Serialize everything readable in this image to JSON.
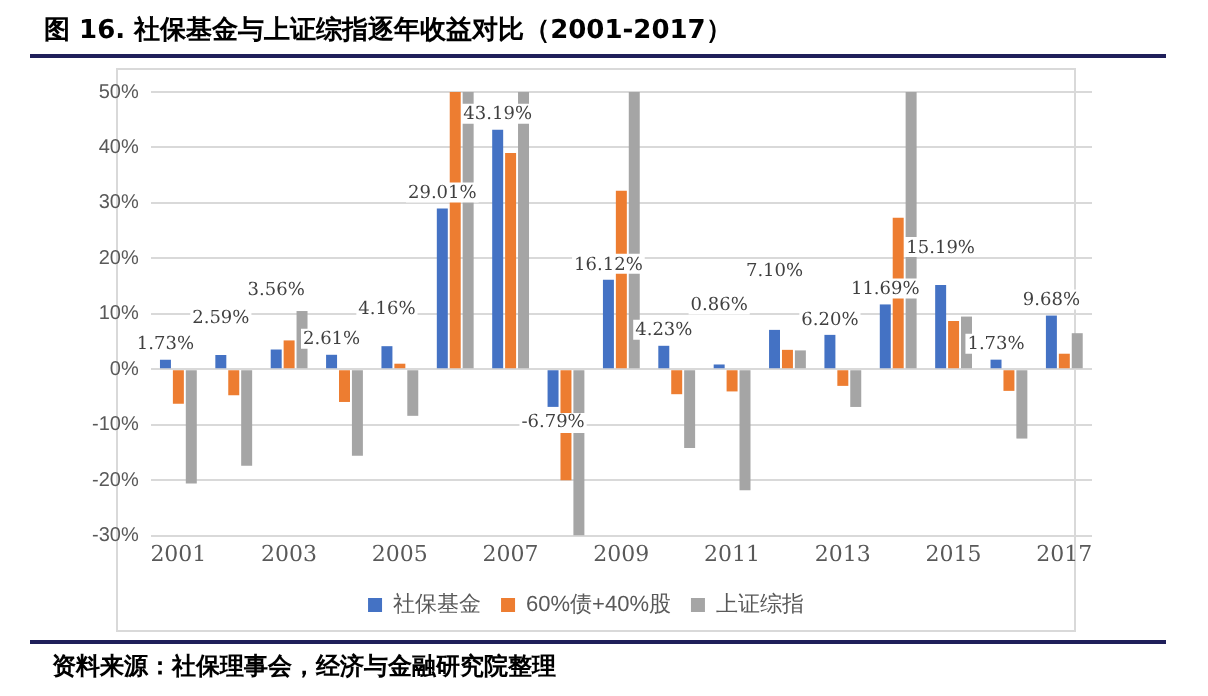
{
  "chart_data": {
    "type": "bar",
    "title": "图 16. 社保基金与上证综指逐年收益对比（2001-2017）",
    "categories": [
      "2001",
      null,
      "2003",
      null,
      "2005",
      null,
      "2007",
      null,
      "2009",
      null,
      "2011",
      null,
      "2013",
      null,
      "2015",
      null,
      "2017"
    ],
    "series": [
      {
        "name": "社保基金",
        "color": "#4472c4",
        "values": [
          1.73,
          2.59,
          3.56,
          2.61,
          4.16,
          29.01,
          43.19,
          -6.79,
          16.12,
          4.23,
          0.86,
          7.1,
          6.2,
          11.69,
          15.19,
          1.73,
          9.68
        ],
        "value_labels": [
          "1.73%",
          "2.59%",
          "3.56%",
          "2.61%",
          "4.16%",
          "29.01%",
          "43.19%",
          "-6.79%",
          "16.12%",
          "4.23%",
          "0.86%",
          "7.10%",
          "6.20%",
          "11.69%",
          "15.19%",
          "1.73%",
          "9.68%"
        ]
      },
      {
        "name": "60%债+40%股",
        "color": "#ed7d31",
        "values": [
          -6.2,
          -4.7,
          5.2,
          -5.9,
          1.0,
          50,
          39,
          -20,
          32.2,
          -4.5,
          -4,
          3.5,
          -3,
          27.3,
          8.7,
          -3.9,
          2.8
        ]
      },
      {
        "name": "上证综指",
        "color": "#a5a5a5",
        "values": [
          -20.6,
          -17.4,
          10.5,
          -15.6,
          -8.4,
          50,
          50,
          -30,
          50,
          -14.2,
          -21.8,
          3.4,
          -6.8,
          50,
          9.5,
          -12.5,
          6.5
        ]
      }
    ],
    "ylim": [
      -30,
      50
    ],
    "yticks": [
      {
        "value": -30,
        "label": "-30%"
      },
      {
        "value": -20,
        "label": "-20%"
      },
      {
        "value": -10,
        "label": "-10%"
      },
      {
        "value": 0,
        "label": "0%"
      },
      {
        "value": 10,
        "label": "10%"
      },
      {
        "value": 20,
        "label": "20%"
      },
      {
        "value": 30,
        "label": "30%"
      },
      {
        "value": 40,
        "label": "40%"
      },
      {
        "value": 50,
        "label": "50%"
      }
    ],
    "grid": "y",
    "legend": "bottom",
    "annotations": [
      "资料来源：社保理事会，经济与金融研究院整理"
    ]
  }
}
